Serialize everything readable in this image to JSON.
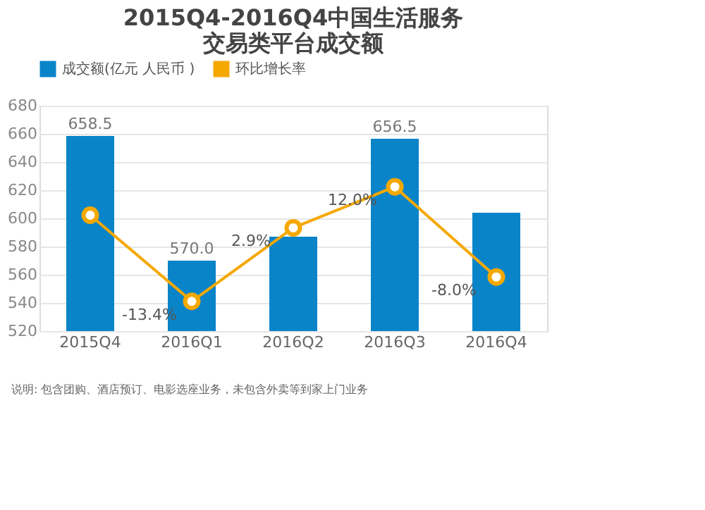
{
  "chart_data": {
    "type": "bar",
    "title": "2015Q4-2016Q4中国生活服务交易类平台成交额",
    "categories": [
      "2015Q4",
      "2016Q1",
      "2016Q2",
      "2016Q3",
      "2016Q4"
    ],
    "series": [
      {
        "name": "成交额(亿元 人民币 )",
        "color": "#0a84c9",
        "values": [
          658.5,
          570.0,
          587,
          656.5,
          604
        ],
        "value_labels": [
          "658.5",
          "570.0",
          null,
          "656.5",
          null
        ]
      },
      {
        "name": "环比增长率",
        "type": "line",
        "axis": "y2",
        "color": "#f5a800",
        "marker": "circle",
        "values": [
          5.7,
          -13.4,
          2.9,
          12.0,
          -8.0
        ],
        "value_labels": [
          null,
          "-13.4%",
          "2.9%",
          "12.0%",
          "-8.0%"
        ]
      }
    ],
    "ylim": [
      520,
      680
    ],
    "yticks": [
      520,
      540,
      560,
      580,
      600,
      620,
      640,
      660,
      680
    ],
    "y2lim": [
      -20,
      30
    ],
    "grid": "y",
    "legend": "top",
    "annotations": [
      "说明: 包含团购、酒店预订、电影选座业务，未包含外卖等到家上门业务"
    ]
  }
}
